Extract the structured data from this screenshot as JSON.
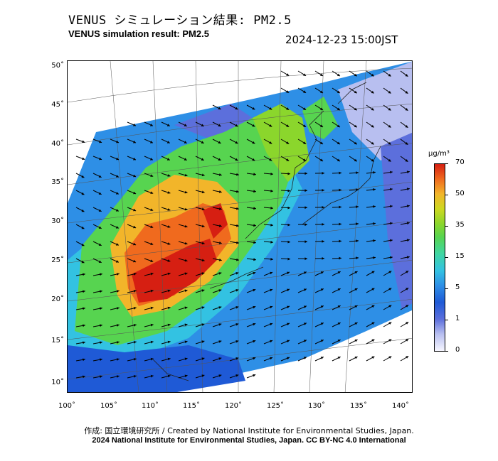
{
  "header": {
    "title_jp": "VENUS シミュレーション結果: PM2.5",
    "title_en": "VENUS simulation result: PM2.5",
    "timestamp": "2024-12-23 15:00JST"
  },
  "map": {
    "lat_ticks": [
      "50˚",
      "45˚",
      "40˚",
      "35˚",
      "30˚",
      "25˚",
      "20˚",
      "15˚",
      "10˚"
    ],
    "lon_ticks": [
      "100˚",
      "105˚",
      "110˚",
      "115˚",
      "120˚",
      "125˚",
      "130˚",
      "135˚",
      "140˚"
    ],
    "variable": "PM2.5 concentration with wind vectors",
    "colors": {
      "very_high": "#d61f12",
      "high": "#f06a1e",
      "elevated": "#f2b52a",
      "moderate": "#8bd62c",
      "low_moderate": "#40d6a2",
      "low": "#2e8fe6",
      "very_low": "#1f5ad6",
      "clean": "#b8bff0"
    }
  },
  "colorbar": {
    "unit": "μg/m³",
    "labels": [
      "70",
      "50",
      "35",
      "15",
      "5",
      "1",
      "0"
    ],
    "color_top": "#d61f12",
    "color_bottom": "#f6f6ff"
  },
  "footer": {
    "credit": "作成: 国立環境研究所 / Created by National Institute for Environmental Studies, Japan.",
    "copyright": "2024 National Institute for Environmental Studies, Japan. CC BY-NC 4.0 International"
  }
}
